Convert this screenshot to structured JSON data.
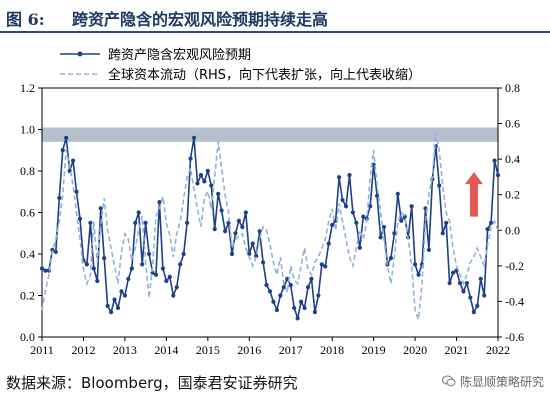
{
  "figure": {
    "number": "图 6:",
    "title": "跨资产隐含的宏观风险预期持续走高"
  },
  "source": "数据来源：Bloomberg，国泰君安证券研究",
  "watermark": "陈显顺策略研究",
  "chart_data": {
    "type": "line",
    "title": "",
    "xlabel": "",
    "ylabel": "",
    "x_ticks": [
      "2011",
      "2012",
      "2013",
      "2014",
      "2015",
      "2016",
      "2017",
      "2018",
      "2019",
      "2020",
      "2021",
      "2022"
    ],
    "y_left_ticks": [
      "0.0",
      "0.2",
      "0.4",
      "0.6",
      "0.8",
      "1.0",
      "1.2"
    ],
    "y_right_ticks": [
      "-0.6",
      "-0.4",
      "-0.2",
      "0.0",
      "0.2",
      "0.4",
      "0.6",
      "0.8"
    ],
    "ylim_left": [
      0,
      1.2
    ],
    "ylim_right": [
      -0.6,
      0.8
    ],
    "xlim": [
      2011,
      2022
    ],
    "band": {
      "y_from": 0.95,
      "y_to": 1.0,
      "color": "#a9b4c6"
    },
    "legend_position": "top-left",
    "arrow_color": "#e05a4f",
    "series": [
      {
        "name": "跨资产隐含宏观风险预期",
        "axis": "left",
        "color": "#1f3f87",
        "style": "solid-marker",
        "x": [
          2011.0,
          2011.083,
          2011.167,
          2011.25,
          2011.333,
          2011.417,
          2011.5,
          2011.583,
          2011.667,
          2011.75,
          2011.833,
          2011.917,
          2012.0,
          2012.083,
          2012.167,
          2012.25,
          2012.333,
          2012.417,
          2012.5,
          2012.583,
          2012.667,
          2012.75,
          2012.833,
          2012.917,
          2013.0,
          2013.083,
          2013.167,
          2013.25,
          2013.333,
          2013.417,
          2013.5,
          2013.583,
          2013.667,
          2013.75,
          2013.833,
          2013.917,
          2014.0,
          2014.083,
          2014.167,
          2014.25,
          2014.333,
          2014.417,
          2014.5,
          2014.583,
          2014.667,
          2014.75,
          2014.833,
          2014.917,
          2015.0,
          2015.083,
          2015.167,
          2015.25,
          2015.333,
          2015.417,
          2015.5,
          2015.583,
          2015.667,
          2015.75,
          2015.833,
          2015.917,
          2016.0,
          2016.083,
          2016.167,
          2016.25,
          2016.333,
          2016.417,
          2016.5,
          2016.583,
          2016.667,
          2016.75,
          2016.833,
          2016.917,
          2017.0,
          2017.083,
          2017.167,
          2017.25,
          2017.333,
          2017.417,
          2017.5,
          2017.583,
          2017.667,
          2017.75,
          2017.833,
          2017.917,
          2018.0,
          2018.083,
          2018.167,
          2018.25,
          2018.333,
          2018.417,
          2018.5,
          2018.583,
          2018.667,
          2018.75,
          2018.833,
          2018.917,
          2019.0,
          2019.083,
          2019.167,
          2019.25,
          2019.333,
          2019.417,
          2019.5,
          2019.583,
          2019.667,
          2019.75,
          2019.833,
          2019.917,
          2020.0,
          2020.083,
          2020.167,
          2020.25,
          2020.333,
          2020.417,
          2020.5,
          2020.583,
          2020.667,
          2020.75,
          2020.833,
          2020.917,
          2021.0,
          2021.083,
          2021.167,
          2021.25,
          2021.333,
          2021.417,
          2021.5,
          2021.583,
          2021.667,
          2021.75,
          2021.833,
          2021.917,
          2022.0
        ],
        "y": [
          0.33,
          0.32,
          0.32,
          0.42,
          0.41,
          0.67,
          0.9,
          0.96,
          0.8,
          0.85,
          0.7,
          0.57,
          0.37,
          0.35,
          0.55,
          0.33,
          0.27,
          0.62,
          0.38,
          0.15,
          0.12,
          0.18,
          0.14,
          0.22,
          0.2,
          0.28,
          0.33,
          0.55,
          0.6,
          0.35,
          0.55,
          0.4,
          0.31,
          0.3,
          0.65,
          0.33,
          0.27,
          0.29,
          0.2,
          0.24,
          0.35,
          0.4,
          0.55,
          0.86,
          0.96,
          0.74,
          0.78,
          0.75,
          0.8,
          0.73,
          0.52,
          0.69,
          0.61,
          0.51,
          0.55,
          0.4,
          0.5,
          0.56,
          0.53,
          0.6,
          0.4,
          0.45,
          0.39,
          0.51,
          0.36,
          0.25,
          0.22,
          0.17,
          0.13,
          0.2,
          0.24,
          0.28,
          0.25,
          0.14,
          0.09,
          0.17,
          0.14,
          0.24,
          0.28,
          0.12,
          0.2,
          0.35,
          0.34,
          0.45,
          0.54,
          0.56,
          0.77,
          0.66,
          0.63,
          0.78,
          0.6,
          0.55,
          0.43,
          0.58,
          0.57,
          0.63,
          0.83,
          0.68,
          0.48,
          0.53,
          0.35,
          0.38,
          0.5,
          0.69,
          0.56,
          0.58,
          0.48,
          0.63,
          0.35,
          0.3,
          0.35,
          0.62,
          0.42,
          0.76,
          0.92,
          0.73,
          0.5,
          0.55,
          0.26,
          0.31,
          0.32,
          0.26,
          0.22,
          0.26,
          0.19,
          0.12,
          0.15,
          0.28,
          0.2,
          0.52,
          0.55,
          0.85,
          0.78
        ]
      },
      {
        "name": "全球资本流动（RHS，向下代表扩张，向上代表收缩）",
        "axis": "right",
        "color": "#8fb1dc",
        "style": "dashed",
        "x": [
          2011.0,
          2011.083,
          2011.167,
          2011.25,
          2011.333,
          2011.417,
          2011.5,
          2011.583,
          2011.667,
          2011.75,
          2011.833,
          2011.917,
          2012.0,
          2012.083,
          2012.167,
          2012.25,
          2012.333,
          2012.417,
          2012.5,
          2012.583,
          2012.667,
          2012.75,
          2012.833,
          2012.917,
          2013.0,
          2013.083,
          2013.167,
          2013.25,
          2013.333,
          2013.417,
          2013.5,
          2013.583,
          2013.667,
          2013.75,
          2013.833,
          2013.917,
          2014.0,
          2014.083,
          2014.167,
          2014.25,
          2014.333,
          2014.417,
          2014.5,
          2014.583,
          2014.667,
          2014.75,
          2014.833,
          2014.917,
          2015.0,
          2015.083,
          2015.167,
          2015.25,
          2015.333,
          2015.417,
          2015.5,
          2015.583,
          2015.667,
          2015.75,
          2015.833,
          2015.917,
          2016.0,
          2016.083,
          2016.167,
          2016.25,
          2016.333,
          2016.417,
          2016.5,
          2016.583,
          2016.667,
          2016.75,
          2016.833,
          2016.917,
          2017.0,
          2017.083,
          2017.167,
          2017.25,
          2017.333,
          2017.417,
          2017.5,
          2017.583,
          2017.667,
          2017.75,
          2017.833,
          2017.917,
          2018.0,
          2018.083,
          2018.167,
          2018.25,
          2018.333,
          2018.417,
          2018.5,
          2018.583,
          2018.667,
          2018.75,
          2018.833,
          2018.917,
          2019.0,
          2019.083,
          2019.167,
          2019.25,
          2019.333,
          2019.417,
          2019.5,
          2019.583,
          2019.667,
          2019.75,
          2019.833,
          2019.917,
          2020.0,
          2020.083,
          2020.167,
          2020.25,
          2020.333,
          2020.417,
          2020.5,
          2020.583,
          2020.667,
          2020.75,
          2020.833,
          2020.917,
          2021.0,
          2021.083,
          2021.167,
          2021.25,
          2021.333,
          2021.417,
          2021.5,
          2021.583,
          2021.667,
          2021.75,
          2021.833,
          2021.917,
          2022.0
        ],
        "y": [
          -0.45,
          -0.34,
          -0.25,
          -0.12,
          -0.05,
          0.05,
          0.2,
          0.45,
          0.36,
          0.25,
          0.1,
          -0.05,
          -0.22,
          -0.3,
          -0.25,
          0.05,
          -0.18,
          0.03,
          0.18,
          0.0,
          -0.1,
          -0.2,
          -0.3,
          -0.12,
          -0.02,
          -0.05,
          -0.17,
          -0.1,
          0.0,
          0.08,
          -0.18,
          -0.38,
          -0.2,
          0.08,
          0.12,
          0.19,
          0.04,
          -0.03,
          -0.15,
          -0.02,
          0.05,
          0.18,
          0.3,
          0.35,
          0.23,
          0.12,
          0.02,
          0.18,
          0.22,
          0.12,
          0.3,
          0.5,
          0.35,
          0.2,
          0.1,
          -0.1,
          -0.05,
          -0.03,
          -0.02,
          -0.1,
          -0.15,
          -0.2,
          -0.15,
          -0.05,
          0.02,
          0.0,
          -0.08,
          -0.18,
          -0.25,
          -0.15,
          -0.3,
          -0.35,
          -0.2,
          -0.28,
          -0.3,
          -0.2,
          -0.1,
          -0.22,
          -0.25,
          -0.18,
          -0.15,
          -0.1,
          -0.05,
          0.05,
          0.12,
          0.0,
          0.15,
          0.05,
          -0.05,
          -0.15,
          -0.2,
          -0.1,
          0.0,
          -0.05,
          0.05,
          0.3,
          0.45,
          0.25,
          0.1,
          -0.05,
          -0.2,
          -0.3,
          -0.15,
          0.05,
          0.1,
          0.08,
          -0.05,
          -0.2,
          -0.45,
          -0.5,
          -0.3,
          0.05,
          0.2,
          0.3,
          0.55,
          0.45,
          0.25,
          0.1,
          0.05,
          -0.1,
          -0.2,
          -0.25,
          -0.3,
          -0.25,
          -0.18,
          -0.15,
          -0.1,
          -0.15,
          -0.2,
          -0.08,
          0.02,
          0.05,
          0.0
        ]
      }
    ]
  }
}
